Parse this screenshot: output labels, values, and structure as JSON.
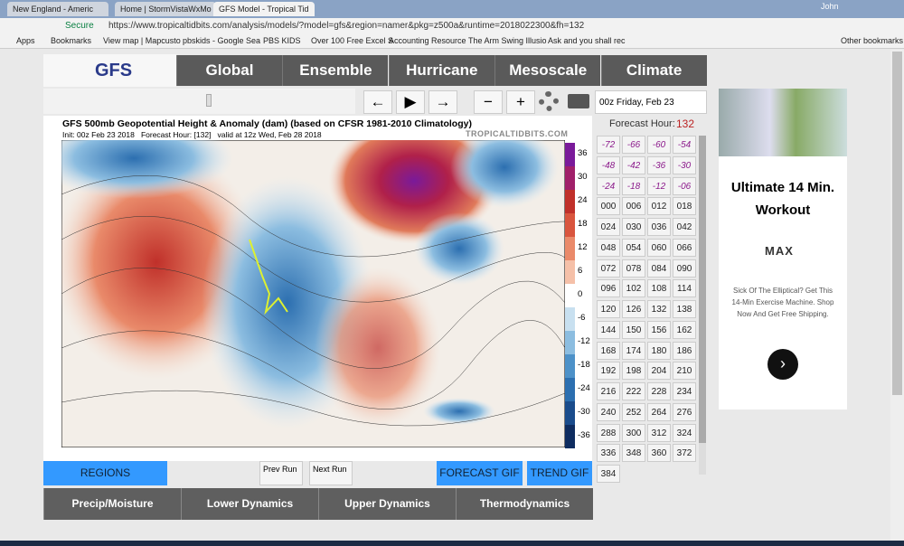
{
  "browser": {
    "tabs": [
      "New England - Americ",
      "Home | StormVistaWxMo",
      "GFS Model - Tropical Tid"
    ],
    "secure": "Secure",
    "url": "https://www.tropicaltidbits.com/analysis/models/?model=gfs&region=namer&pkg=z500a&runtime=2018022300&fh=132",
    "user": "John",
    "bookmarks": [
      "Apps",
      "Bookmarks",
      "View map | Mapcusto",
      "pbskids - Google Sea",
      "PBS KIDS",
      "Over 100 Free Excel S",
      "Accounting Resource",
      "The Arm Swing Illusio",
      "Ask and you shall rec"
    ],
    "other_bookmarks": "Other bookmarks"
  },
  "header": {
    "logo": "GFS",
    "nav": [
      "Global",
      "Ensemble",
      "Hurricane",
      "Mesoscale",
      "Climate"
    ]
  },
  "controls": {
    "run": "00z Friday, Feb 23",
    "forecast_hour_label": "Forecast Hour:",
    "forecast_hour": "132"
  },
  "map": {
    "title": "GFS 500mb Geopotential Height & Anomaly (dam) (based on CFSR 1981-2010 Climatology)",
    "init": "Init: 00z Feb 23 2018   Forecast Hour: [132]   valid at 12z Wed, Feb 28 2018",
    "credit": "TROPICALTIDBITS.COM",
    "colorbar": [
      "36",
      "30",
      "24",
      "18",
      "12",
      "6",
      "0",
      "-6",
      "-12",
      "-18",
      "-24",
      "-30",
      "-36"
    ]
  },
  "anomaly_buttons": [
    "-72",
    "-66",
    "-60",
    "-54",
    "-48",
    "-42",
    "-36",
    "-30",
    "-24",
    "-18",
    "-12",
    "-06"
  ],
  "hour_buttons": [
    "000",
    "006",
    "012",
    "018",
    "024",
    "030",
    "036",
    "042",
    "048",
    "054",
    "060",
    "066",
    "072",
    "078",
    "084",
    "090",
    "096",
    "102",
    "108",
    "114",
    "120",
    "126",
    "132",
    "138",
    "144",
    "150",
    "156",
    "162",
    "168",
    "174",
    "180",
    "186",
    "192",
    "198",
    "204",
    "210",
    "216",
    "222",
    "228",
    "234",
    "240",
    "252",
    "264",
    "276",
    "288",
    "300",
    "312",
    "324",
    "336",
    "348",
    "360",
    "372",
    "384"
  ],
  "buttons": {
    "regions": "REGIONS",
    "prev": "Prev Run",
    "next": "Next Run",
    "forecast_gif": "FORECAST GIF",
    "trend_gif": "TREND GIF"
  },
  "bottom_tabs": [
    "Precip/Moisture",
    "Lower Dynamics",
    "Upper Dynamics",
    "Thermodynamics"
  ],
  "ad": {
    "headline": "Ultimate 14 Min. Workout",
    "brand": "MAX",
    "body": "Sick Of The Elliptical? Get This 14-Min Exercise Machine. Shop Now And Get Free Shipping."
  }
}
